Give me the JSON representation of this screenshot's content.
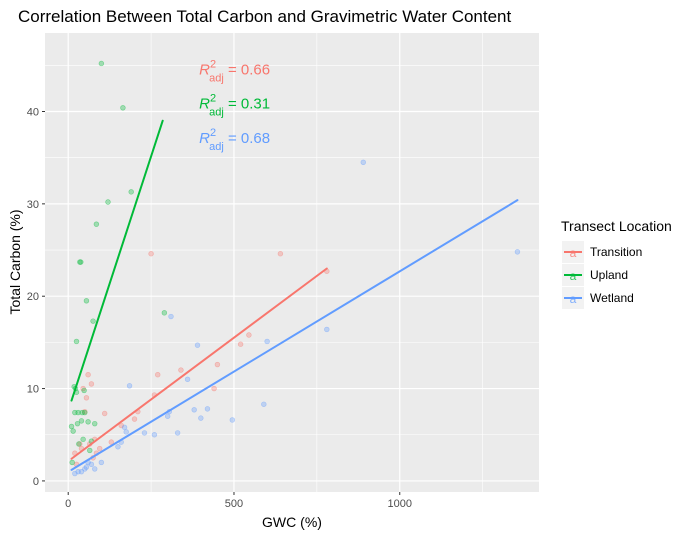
{
  "chart_data": {
    "type": "scatter",
    "title": "Correlation Between Total Carbon and Gravimetric Water Content",
    "xlabel": "GWC (%)",
    "ylabel": "Total Carbon (%)",
    "xlim": [
      -70,
      1420
    ],
    "ylim": [
      -1.2,
      48.5
    ],
    "x_ticks": [
      0,
      500,
      1000
    ],
    "x_tick_labels": [
      "0",
      "500",
      "1000"
    ],
    "y_ticks": [
      0,
      10,
      20,
      30,
      40
    ],
    "y_tick_labels": [
      "0",
      "10",
      "20",
      "30",
      "40"
    ],
    "grid": true,
    "legend": {
      "title": "Transect Location",
      "placement": "right",
      "glyph": "a",
      "entries": [
        "Transition",
        "Upland",
        "Wetland"
      ]
    },
    "series": [
      {
        "name": "Transition",
        "color": "#F8766D",
        "points": [
          [
            20,
            3.0
          ],
          [
            25,
            1.8
          ],
          [
            35,
            4.0
          ],
          [
            40,
            3.5
          ],
          [
            45,
            10.0
          ],
          [
            50,
            7.5
          ],
          [
            55,
            9.0
          ],
          [
            60,
            11.5
          ],
          [
            65,
            4.0
          ],
          [
            70,
            10.5
          ],
          [
            75,
            2.5
          ],
          [
            80,
            4.5
          ],
          [
            85,
            3.0
          ],
          [
            95,
            3.5
          ],
          [
            110,
            7.3
          ],
          [
            130,
            4.2
          ],
          [
            160,
            6.0
          ],
          [
            200,
            6.7
          ],
          [
            210,
            7.5
          ],
          [
            250,
            24.6
          ],
          [
            260,
            9.3
          ],
          [
            270,
            11.5
          ],
          [
            340,
            12.0
          ],
          [
            440,
            10.0
          ],
          [
            450,
            12.6
          ],
          [
            520,
            14.8
          ],
          [
            545,
            15.8
          ],
          [
            640,
            24.6
          ],
          [
            780,
            22.7
          ]
        ],
        "fit": {
          "x": [
            10,
            780
          ],
          "y": [
            2.4,
            23.0
          ]
        }
      },
      {
        "name": "Upland",
        "color": "#00BA38",
        "points": [
          [
            10,
            5.9
          ],
          [
            12,
            2.0
          ],
          [
            15,
            5.4
          ],
          [
            18,
            10.2
          ],
          [
            20,
            7.4
          ],
          [
            22,
            10.0
          ],
          [
            25,
            9.6
          ],
          [
            28,
            6.2
          ],
          [
            30,
            7.4
          ],
          [
            32,
            4.0
          ],
          [
            35,
            23.7
          ],
          [
            38,
            23.7
          ],
          [
            40,
            6.5
          ],
          [
            42,
            7.4
          ],
          [
            45,
            4.5
          ],
          [
            48,
            9.8
          ],
          [
            50,
            7.4
          ],
          [
            55,
            19.5
          ],
          [
            60,
            6.4
          ],
          [
            65,
            3.3
          ],
          [
            70,
            4.3
          ],
          [
            75,
            17.3
          ],
          [
            80,
            6.2
          ],
          [
            85,
            27.8
          ],
          [
            100,
            45.2
          ],
          [
            120,
            30.2
          ],
          [
            165,
            40.4
          ],
          [
            190,
            31.3
          ],
          [
            290,
            18.2
          ],
          [
            25,
            15.1
          ]
        ],
        "fit": {
          "x": [
            10,
            285
          ],
          "y": [
            8.7,
            39.0
          ]
        }
      },
      {
        "name": "Wetland",
        "color": "#619CFF",
        "points": [
          [
            20,
            0.8
          ],
          [
            30,
            1.0
          ],
          [
            40,
            1.0
          ],
          [
            50,
            1.3
          ],
          [
            55,
            1.5
          ],
          [
            60,
            2.0
          ],
          [
            70,
            1.8
          ],
          [
            80,
            1.3
          ],
          [
            100,
            2.0
          ],
          [
            150,
            3.7
          ],
          [
            160,
            4.2
          ],
          [
            170,
            5.8
          ],
          [
            175,
            5.3
          ],
          [
            185,
            10.3
          ],
          [
            230,
            5.2
          ],
          [
            260,
            5.0
          ],
          [
            300,
            7.0
          ],
          [
            305,
            7.5
          ],
          [
            310,
            17.8
          ],
          [
            330,
            5.2
          ],
          [
            360,
            11.0
          ],
          [
            380,
            7.7
          ],
          [
            390,
            14.7
          ],
          [
            400,
            6.8
          ],
          [
            420,
            7.8
          ],
          [
            495,
            6.6
          ],
          [
            590,
            8.3
          ],
          [
            600,
            15.1
          ],
          [
            780,
            16.4
          ],
          [
            890,
            34.5
          ],
          [
            1355,
            24.8
          ]
        ],
        "fit": {
          "x": [
            10,
            1355
          ],
          "y": [
            1.2,
            30.4
          ]
        }
      }
    ],
    "annotations": [
      {
        "sup": "2",
        "sub": "adj",
        "text": " = 0.66",
        "color": "#F8766D",
        "x": 395,
        "y": 44.0
      },
      {
        "sup": "2",
        "sub": "adj",
        "text": " = 0.31",
        "color": "#00BA38",
        "x": 395,
        "y": 40.3
      },
      {
        "sup": "2",
        "sub": "adj",
        "text": " = 0.68",
        "color": "#619CFF",
        "x": 395,
        "y": 36.6
      }
    ],
    "panel_bg": "#EBEBEB",
    "grid_color": "#FFFFFF"
  }
}
